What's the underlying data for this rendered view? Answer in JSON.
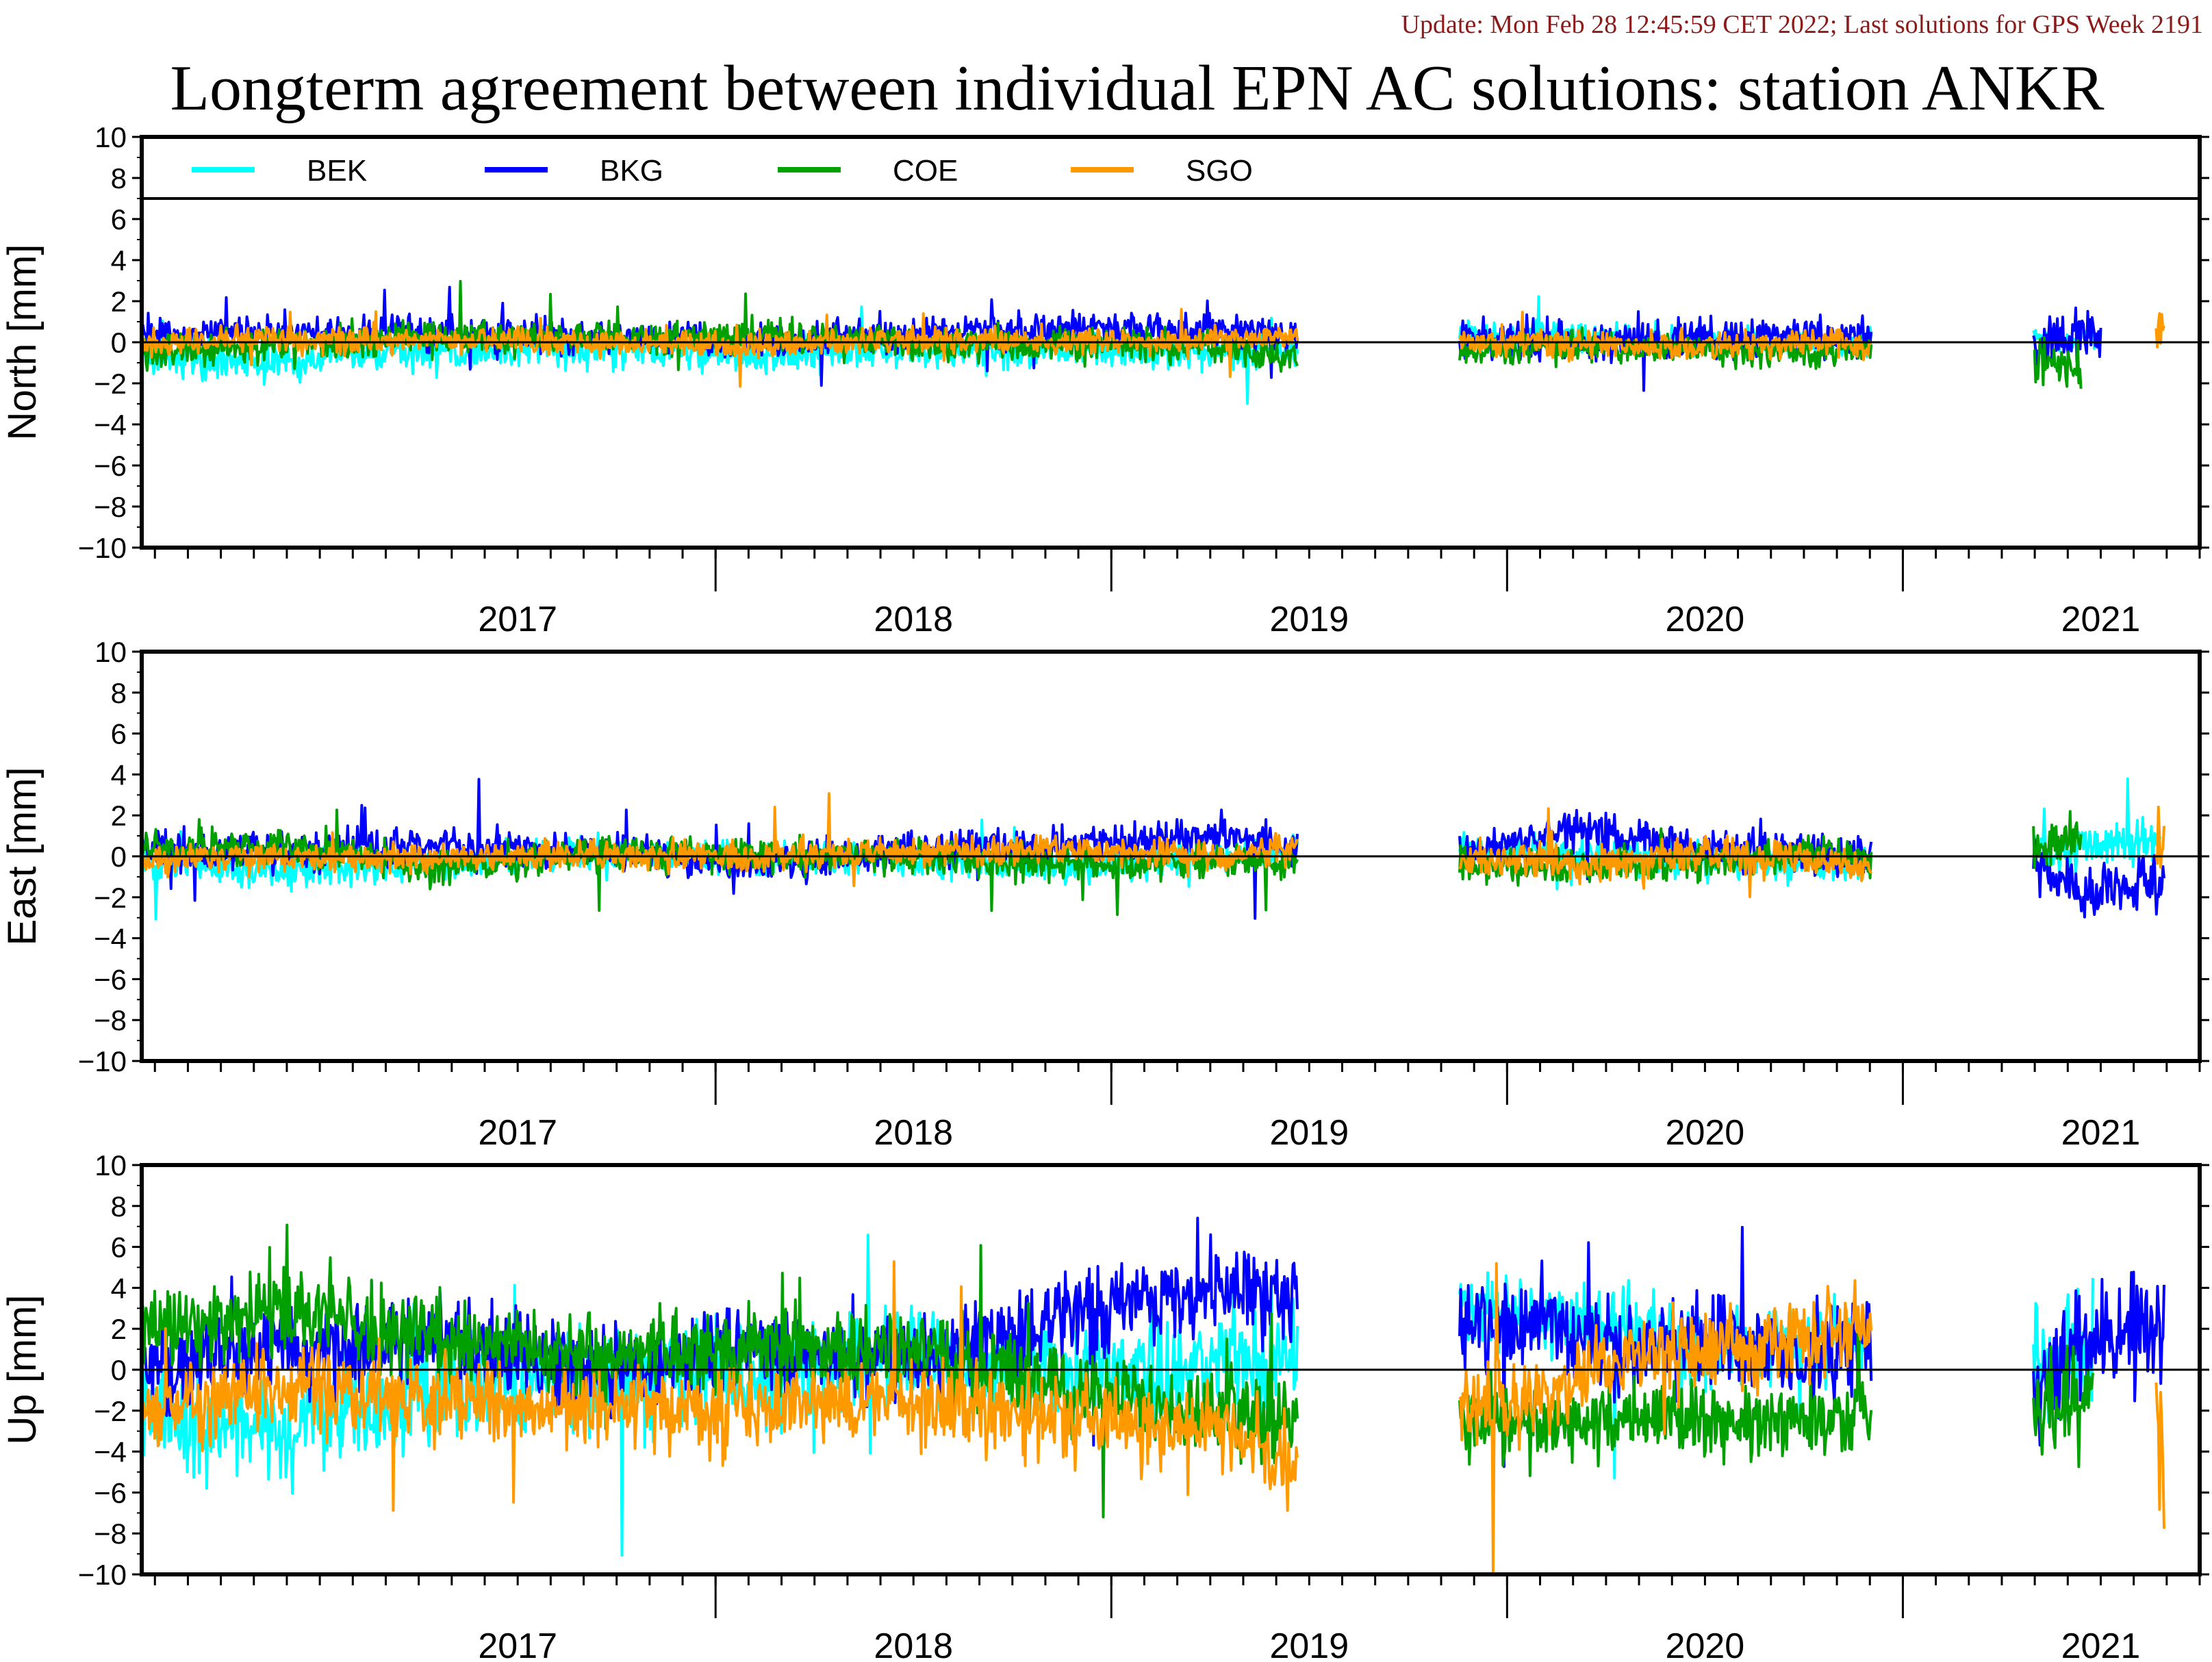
{
  "header": {
    "update": "Update: Mon Feb 28 12:45:59 CET 2022; Last solutions for GPS Week 2191",
    "title": "Longterm agreement between individual EPN AC solutions: station ANKR"
  },
  "colors": {
    "BEK": "#00ffff",
    "BKG": "#0000ff",
    "COE": "#00a000",
    "SGO": "#ff9900",
    "update_text": "#8b1a1a"
  },
  "chart_data": [
    {
      "type": "line",
      "panel": "north",
      "ylabel": "North [mm]",
      "ylim": [
        -10,
        10
      ],
      "yticks": [
        "10",
        "8",
        "6",
        "4",
        "2",
        "0",
        "−2",
        "−4",
        "−6",
        "−8",
        "−10"
      ],
      "xlim": [
        2016.55,
        2021.75
      ],
      "x_tick_labels": [
        "2017",
        "2018",
        "2019",
        "2020",
        "2021"
      ],
      "legend": [
        "BEK",
        "BKG",
        "COE",
        "SGO"
      ],
      "legend_placement": "top, inside",
      "series": [
        {
          "name": "BEK",
          "segments": [
            {
              "x": [
                2016.55,
                2016.9,
                2017.3,
                2017.7,
                2018.1,
                2018.5,
                2018.9,
                2019.3,
                2019.47
              ],
              "y": [
                -0.6,
                -0.9,
                -0.4,
                -0.3,
                -0.6,
                -0.3,
                -0.4,
                -0.5,
                -0.3
              ],
              "spread": 0.9
            },
            {
              "x": [
                2019.88,
                2020.2,
                2020.5,
                2020.8,
                2020.92
              ],
              "y": [
                0.2,
                0.3,
                0.0,
                0.1,
                0.0
              ],
              "spread": 0.7
            },
            {
              "x": [
                2021.33,
                2021.5
              ],
              "y": [
                0.2,
                0.3
              ],
              "spread": 0.6
            }
          ]
        },
        {
          "name": "BKG",
          "segments": [
            {
              "x": [
                2016.55,
                2016.9,
                2017.3,
                2017.7,
                2018.1,
                2018.5,
                2018.9,
                2019.3,
                2019.47
              ],
              "y": [
                0.4,
                0.5,
                0.4,
                0.3,
                0.0,
                0.4,
                0.7,
                0.5,
                0.2
              ],
              "spread": 0.8
            },
            {
              "x": [
                2019.88,
                2020.2,
                2020.5,
                2020.8,
                2020.92
              ],
              "y": [
                0.3,
                0.0,
                0.2,
                0.4,
                0.2
              ],
              "spread": 0.9
            },
            {
              "x": [
                2021.33,
                2021.5
              ],
              "y": [
                -0.3,
                0.5
              ],
              "spread": 1.2
            }
          ]
        },
        {
          "name": "COE",
          "segments": [
            {
              "x": [
                2016.55,
                2016.9,
                2017.3,
                2017.7,
                2018.1,
                2018.5,
                2018.9,
                2019.3,
                2019.47
              ],
              "y": [
                -0.4,
                -0.2,
                0.3,
                0.2,
                0.3,
                0.0,
                -0.2,
                -0.3,
                -0.6
              ],
              "spread": 0.8
            },
            {
              "x": [
                2019.88,
                2020.2,
                2020.5,
                2020.8,
                2020.92
              ],
              "y": [
                -0.5,
                -0.2,
                -0.4,
                -0.5,
                -0.3
              ],
              "spread": 0.7
            },
            {
              "x": [
                2021.33,
                2021.45
              ],
              "y": [
                -0.9,
                -1.5
              ],
              "spread": 1.2
            }
          ]
        },
        {
          "name": "SGO",
          "segments": [
            {
              "x": [
                2016.55,
                2016.9,
                2017.3,
                2017.7,
                2018.1,
                2018.5,
                2018.9,
                2019.3,
                2019.47
              ],
              "y": [
                0.0,
                0.1,
                0.1,
                0.0,
                -0.1,
                0.1,
                0.0,
                0.1,
                0.3
              ],
              "spread": 0.6
            },
            {
              "x": [
                2019.88,
                2020.2,
                2020.5,
                2020.8,
                2020.92
              ],
              "y": [
                0.0,
                -0.1,
                -0.2,
                0.0,
                -0.1
              ],
              "spread": 0.7
            },
            {
              "x": [
                2021.64,
                2021.66
              ],
              "y": [
                0.3,
                0.8
              ],
              "spread": 1.2
            }
          ]
        }
      ]
    },
    {
      "type": "line",
      "panel": "east",
      "ylabel": "East [mm]",
      "ylim": [
        -10,
        10
      ],
      "yticks": [
        "10",
        "8",
        "6",
        "4",
        "2",
        "0",
        "−2",
        "−4",
        "−6",
        "−8",
        "−10"
      ],
      "xlim": [
        2016.55,
        2021.75
      ],
      "x_tick_labels": [
        "2017",
        "2018",
        "2019",
        "2020",
        "2021"
      ],
      "series": [
        {
          "name": "BEK",
          "segments": [
            {
              "x": [
                2016.55,
                2016.9,
                2017.3,
                2017.7,
                2018.1,
                2018.5,
                2018.9,
                2019.3,
                2019.47
              ],
              "y": [
                -0.3,
                -0.8,
                -0.3,
                0.2,
                0.0,
                -0.2,
                -0.5,
                0.0,
                0.3
              ],
              "spread": 0.8
            },
            {
              "x": [
                2019.88,
                2020.2,
                2020.5,
                2020.8,
                2020.92
              ],
              "y": [
                0.3,
                0.1,
                -0.2,
                -0.6,
                -0.4
              ],
              "spread": 0.8
            },
            {
              "x": [
                2021.33,
                2021.5,
                2021.65
              ],
              "y": [
                0.0,
                0.5,
                1.0
              ],
              "spread": 1.0
            }
          ]
        },
        {
          "name": "BKG",
          "segments": [
            {
              "x": [
                2016.55,
                2016.9,
                2017.3,
                2017.7,
                2018.1,
                2018.5,
                2018.9,
                2019.3,
                2019.47
              ],
              "y": [
                0.3,
                0.2,
                0.6,
                0.1,
                -0.4,
                0.3,
                0.5,
                1.0,
                0.3
              ],
              "spread": 0.9
            },
            {
              "x": [
                2019.88,
                2020.2,
                2020.5,
                2020.8,
                2020.92
              ],
              "y": [
                0.2,
                1.2,
                0.4,
                0.2,
                0.0
              ],
              "spread": 1.0
            },
            {
              "x": [
                2021.33,
                2021.45,
                2021.66
              ],
              "y": [
                -0.5,
                -1.8,
                -1.0
              ],
              "spread": 1.3
            }
          ]
        },
        {
          "name": "COE",
          "segments": [
            {
              "x": [
                2016.55,
                2016.9,
                2017.3,
                2017.7,
                2018.1,
                2018.5,
                2018.9,
                2019.3,
                2019.47
              ],
              "y": [
                0.4,
                0.5,
                -0.6,
                0.2,
                0.1,
                0.0,
                -0.4,
                -0.3,
                -0.3
              ],
              "spread": 0.8
            },
            {
              "x": [
                2019.88,
                2020.2,
                2020.5,
                2020.8,
                2020.92
              ],
              "y": [
                -0.4,
                -0.6,
                -0.3,
                0.2,
                -0.3
              ],
              "spread": 0.8
            },
            {
              "x": [
                2021.33,
                2021.45
              ],
              "y": [
                0.5,
                1.0
              ],
              "spread": 1.2
            }
          ]
        },
        {
          "name": "SGO",
          "segments": [
            {
              "x": [
                2016.55,
                2016.9,
                2017.3,
                2017.7,
                2018.1,
                2018.5,
                2018.9,
                2019.3,
                2019.47
              ],
              "y": [
                -0.2,
                0.0,
                -0.1,
                0.1,
                0.0,
                0.2,
                0.3,
                0.0,
                0.5
              ],
              "spread": 0.7
            },
            {
              "x": [
                2019.88,
                2020.2,
                2020.5,
                2020.8,
                2020.92
              ],
              "y": [
                0.0,
                -0.4,
                0.1,
                -0.2,
                -0.5
              ],
              "spread": 0.8
            },
            {
              "x": [
                2021.64,
                2021.66
              ],
              "y": [
                0.5,
                2.0
              ],
              "spread": 1.3
            }
          ]
        }
      ]
    },
    {
      "type": "line",
      "panel": "up",
      "ylabel": "Up [mm]",
      "ylim": [
        -10,
        10
      ],
      "yticks": [
        "10",
        "8",
        "6",
        "4",
        "2",
        "0",
        "−2",
        "−4",
        "−6",
        "−8",
        "−10"
      ],
      "xlim": [
        2016.55,
        2021.75
      ],
      "x_tick_labels": [
        "2017",
        "2018",
        "2019",
        "2020",
        "2021"
      ],
      "series": [
        {
          "name": "BEK",
          "segments": [
            {
              "x": [
                2016.55,
                2016.9,
                2017.3,
                2017.7,
                2018.1,
                2018.5,
                2018.9,
                2019.3,
                2019.47
              ],
              "y": [
                -2.0,
                -3.0,
                -1.0,
                -0.5,
                0.0,
                0.5,
                0.0,
                0.5,
                1.0
              ],
              "spread": 2.5
            },
            {
              "x": [
                2019.88,
                2020.1,
                2020.3,
                2020.5,
                2020.8,
                2020.92
              ],
              "y": [
                3.0,
                2.5,
                2.0,
                1.0,
                1.5,
                1.0
              ],
              "spread": 1.8
            },
            {
              "x": [
                2021.33,
                2021.48
              ],
              "y": [
                0.0,
                1.0
              ],
              "spread": 3.0
            }
          ]
        },
        {
          "name": "BKG",
          "segments": [
            {
              "x": [
                2016.55,
                2016.9,
                2017.3,
                2017.7,
                2018.1,
                2018.5,
                2018.9,
                2019.3,
                2019.47
              ],
              "y": [
                0.0,
                1.0,
                1.5,
                0.0,
                1.0,
                0.5,
                2.5,
                4.0,
                3.5
              ],
              "spread": 2.2
            },
            {
              "x": [
                2019.88,
                2020.1,
                2020.3,
                2020.5,
                2020.8,
                2020.92
              ],
              "y": [
                2.0,
                2.5,
                0.5,
                1.5,
                0.5,
                1.5
              ],
              "spread": 2.2
            },
            {
              "x": [
                2021.33,
                2021.48,
                2021.66
              ],
              "y": [
                -1.0,
                1.5,
                2.0
              ],
              "spread": 3.0
            }
          ]
        },
        {
          "name": "COE",
          "segments": [
            {
              "x": [
                2016.55,
                2016.9,
                2017.3,
                2017.7,
                2018.1,
                2018.5,
                2018.9,
                2019.3,
                2019.47
              ],
              "y": [
                2.0,
                3.0,
                1.5,
                0.5,
                1.0,
                1.0,
                -1.0,
                -2.0,
                -2.5
              ],
              "spread": 2.0
            },
            {
              "x": [
                2019.88,
                2020.1,
                2020.3,
                2020.5,
                2020.8,
                2020.92
              ],
              "y": [
                -2.5,
                -3.0,
                -2.0,
                -2.5,
                -2.5,
                -2.0
              ],
              "spread": 1.8
            },
            {
              "x": [
                2021.33,
                2021.48
              ],
              "y": [
                -2.0,
                -1.0
              ],
              "spread": 3.0
            }
          ]
        },
        {
          "name": "SGO",
          "segments": [
            {
              "x": [
                2016.55,
                2016.9,
                2017.3,
                2017.7,
                2018.1,
                2018.5,
                2018.9,
                2019.3,
                2019.47
              ],
              "y": [
                -2.0,
                -1.0,
                -1.5,
                -2.0,
                -2.0,
                -1.5,
                -2.5,
                -3.0,
                -5.0
              ],
              "spread": 2.0
            },
            {
              "x": [
                2019.88,
                2020.1,
                2020.3,
                2020.5,
                2020.8,
                2020.92
              ],
              "y": [
                -2.0,
                -1.0,
                0.5,
                1.0,
                1.5,
                2.0
              ],
              "spread": 2.0
            },
            {
              "x": [
                2021.64,
                2021.66
              ],
              "y": [
                -1.0,
                -5.0
              ],
              "spread": 3.5
            }
          ]
        }
      ]
    }
  ]
}
